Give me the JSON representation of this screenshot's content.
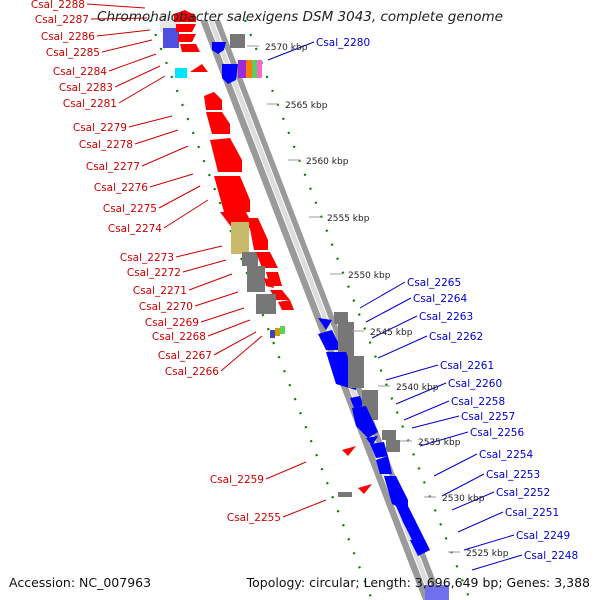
{
  "title": "Chromohalobacter salexigens DSM 3043, complete genome",
  "footer": {
    "accession": "Accession: NC_007963",
    "topology": "Topology: circular; Length: 3,696,649 bp; Genes: 3,388"
  },
  "colors": {
    "forward_gene": "#ff0000",
    "reverse_gene": "#0000ff",
    "unassigned_gene": "#777777",
    "label_left": "#cc0000",
    "label_right": "#0000cc",
    "tick_mark": "#008000",
    "backbone": "#8c8c8c"
  },
  "ruler_ticks": [
    "2570 kbp",
    "2565 kbp",
    "2560 kbp",
    "2555 kbp",
    "2550 kbp",
    "2545 kbp",
    "2540 kbp",
    "2535 kbp",
    "2530 kbp",
    "2525 kbp"
  ],
  "left_labels": [
    "Csal_2288",
    "Csal_2287",
    "Csal_2286",
    "Csal_2285",
    "Csal_2284",
    "Csal_2283",
    "Csal_2281",
    "Csal_2279",
    "Csal_2278",
    "Csal_2277",
    "Csal_2276",
    "Csal_2275",
    "Csal_2274",
    "Csal_2273",
    "Csal_2272",
    "Csal_2271",
    "Csal_2270",
    "Csal_2269",
    "Csal_2268",
    "Csal_2267",
    "Csal_2266",
    "Csal_2259",
    "Csal_2255"
  ],
  "right_labels": [
    "Csal_2280",
    "Csal_2265",
    "Csal_2264",
    "Csal_2263",
    "Csal_2262",
    "Csal_2261",
    "Csal_2260",
    "Csal_2258",
    "Csal_2257",
    "Csal_2256",
    "Csal_2254",
    "Csal_2253",
    "Csal_2252",
    "Csal_2251",
    "Csal_2249",
    "Csal_2248"
  ]
}
